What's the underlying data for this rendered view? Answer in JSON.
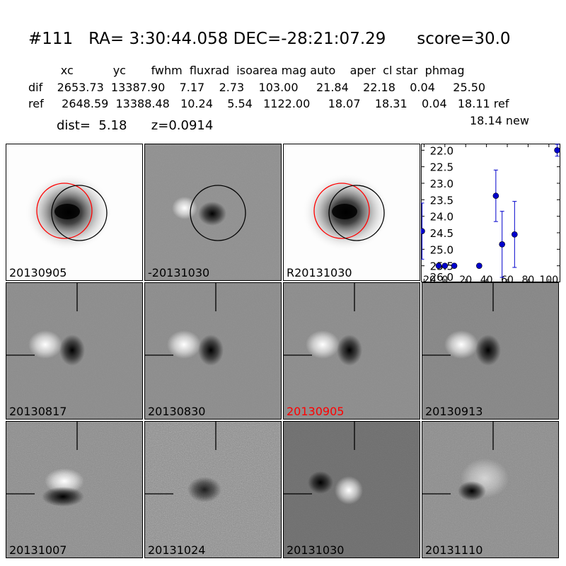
{
  "header": {
    "title": "#111   RA= 3:30:44.058 DEC=-28:21:07.29      score=30.0",
    "columns": "         xc           yc       fwhm  fluxrad  isoarea mag auto    aper  cl star  phmag",
    "dif_row": "dif    2653.73  13387.90    7.17    2.73    103.00     21.84    22.18    0.04     25.50",
    "ref_row": "ref     2648.59  13388.48   10.24    5.54   1122.00     18.07    18.31    0.04   18.11 ref",
    "new_row": "18.14 new",
    "dist_line": "dist=  5.18      z=0.0914"
  },
  "panels": [
    {
      "label": "20130905",
      "kind": "galaxy",
      "circles": true,
      "label_color": "#000000"
    },
    {
      "label": "-20131030",
      "kind": "diff",
      "circles": true,
      "label_color": "#000000"
    },
    {
      "label": "R20131030",
      "kind": "galaxy",
      "circles": true,
      "label_color": "#000000"
    },
    {
      "label": "20130817",
      "kind": "dipole",
      "label_color": "#000000"
    },
    {
      "label": "20130830",
      "kind": "dipole",
      "label_color": "#000000"
    },
    {
      "label": "20130905",
      "kind": "dipole",
      "label_color": "#ff0000"
    },
    {
      "label": "20130913",
      "kind": "dipole",
      "label_color": "#000000"
    },
    {
      "label": "20131007",
      "kind": "noisy-dipole",
      "label_color": "#000000"
    },
    {
      "label": "20131024",
      "kind": "very-noisy",
      "label_color": "#000000"
    },
    {
      "label": "20131030",
      "kind": "inverse-dipole",
      "label_color": "#000000"
    },
    {
      "label": "20131110",
      "kind": "noisy-dipole-2",
      "label_color": "#000000"
    }
  ],
  "colors": {
    "circle_red": "#ff0000",
    "circle_black": "#000000",
    "points": "#0000cc"
  },
  "chart_data": {
    "type": "scatter",
    "title": "",
    "xlabel": "",
    "ylabel": "",
    "x_ticks": [
      "20",
      "0",
      "20",
      "40",
      "60",
      "80",
      "100"
    ],
    "x_tick_values": [
      -20,
      0,
      20,
      40,
      60,
      80,
      100
    ],
    "y_ticks": [
      "22.0",
      "22.5",
      "23.0",
      "23.5",
      "24.0",
      "24.5",
      "25.0",
      "25.5",
      "26.0"
    ],
    "y_tick_values": [
      22.0,
      22.5,
      23.0,
      23.5,
      24.0,
      24.5,
      25.0,
      25.5,
      26.0
    ],
    "xlim": [
      -23,
      111
    ],
    "ylim": [
      26.0,
      21.8
    ],
    "y_inverted": true,
    "points": [
      {
        "x": -22,
        "y": 24.45,
        "err": 0.85
      },
      {
        "x": -6,
        "y": 25.5,
        "err": 0.06
      },
      {
        "x": 0,
        "y": 25.5,
        "err": 0.06
      },
      {
        "x": 9,
        "y": 25.5,
        "err": 0.06
      },
      {
        "x": 33,
        "y": 25.5,
        "err": 0.06
      },
      {
        "x": 49,
        "y": 23.38,
        "err": 0.78
      },
      {
        "x": 55,
        "y": 24.85,
        "err": 1.0
      },
      {
        "x": 67,
        "y": 24.55,
        "err": 1.0
      },
      {
        "x": 108,
        "y": 22.0,
        "err": 0.18
      }
    ]
  }
}
